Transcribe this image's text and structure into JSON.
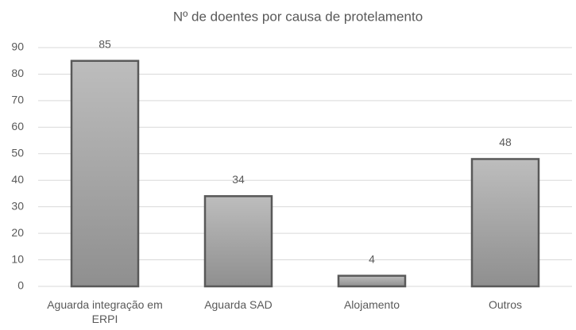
{
  "chart_data": {
    "type": "bar",
    "title": "Nº de doentes por causa de protelamento",
    "categories": [
      "Aguarda integração em ERPI",
      "Aguarda SAD",
      "Alojamento",
      "Outros"
    ],
    "values": [
      85,
      34,
      4,
      48
    ],
    "color": "#a6a6a6",
    "ylim": [
      0,
      90
    ],
    "yticks": [
      0,
      10,
      20,
      30,
      40,
      50,
      60,
      70,
      80,
      90
    ],
    "grid": true
  }
}
